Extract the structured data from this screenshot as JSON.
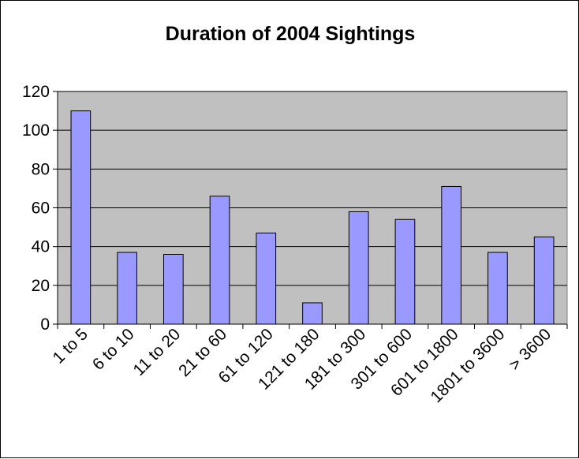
{
  "chart_data": {
    "type": "bar",
    "title": "Duration of 2004 Sightings",
    "xlabel": "",
    "ylabel": "",
    "categories": [
      "1 to 5",
      "6 to 10",
      "11 to 20",
      "21 to 60",
      "61 to 120",
      "121 to 180",
      "181 to 300",
      "301 to 600",
      "601 to 1800",
      "1801 to 3600",
      "> 3600"
    ],
    "values": [
      110,
      37,
      36,
      66,
      47,
      11,
      58,
      54,
      71,
      37,
      45
    ],
    "ylim": [
      0,
      120
    ],
    "yticks": [
      "0",
      "20",
      "40",
      "60",
      "80",
      "100",
      "120"
    ],
    "grid": true,
    "legend": "none",
    "colors": {
      "bar_fill": "#9999ff",
      "bar_stroke": "#000000",
      "plot_background": "#c0c0c0",
      "gridline": "#000000"
    }
  }
}
